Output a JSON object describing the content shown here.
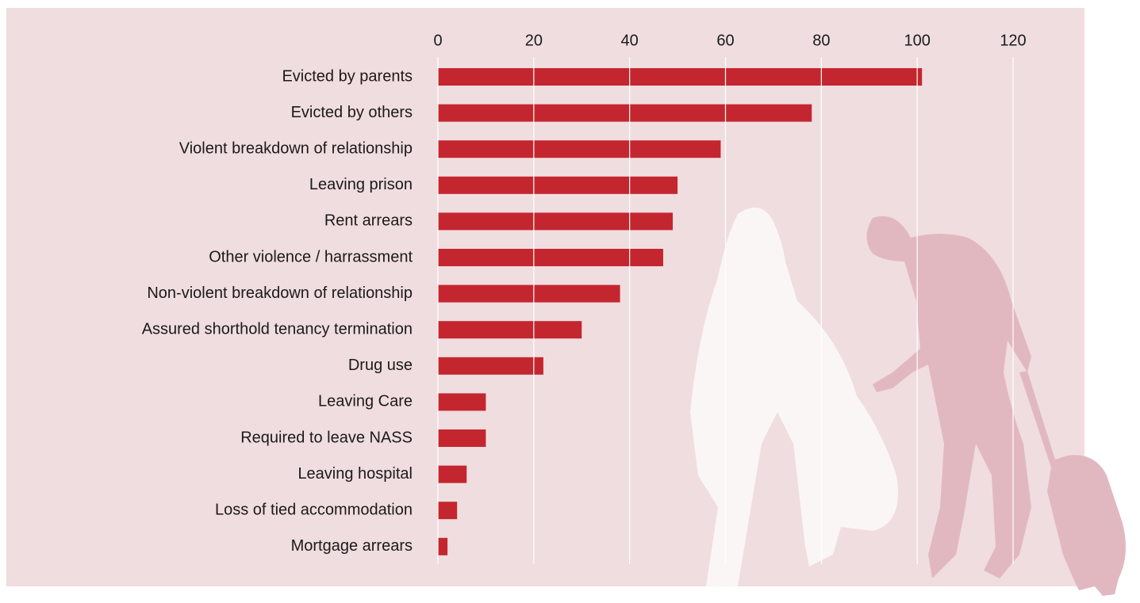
{
  "chart_data": {
    "type": "bar",
    "orientation": "horizontal",
    "categories": [
      "Evicted by parents",
      "Evicted by others",
      "Violent breakdown of relationship",
      "Leaving prison",
      "Rent arrears",
      "Other violence / harrassment",
      "Non-violent breakdown of relationship",
      "Assured shorthold tenancy termination",
      "Drug use",
      "Leaving Care",
      "Required to leave NASS",
      "Leaving hospital",
      "Loss of tied accommodation",
      "Mortgage arrears"
    ],
    "values": [
      101,
      78,
      59,
      50,
      49,
      47,
      38,
      30,
      22,
      10,
      10,
      6,
      4,
      2
    ],
    "color": "#c4262f",
    "xlim": [
      0,
      120
    ],
    "xticks": [
      0,
      20,
      40,
      60,
      80,
      100,
      120
    ],
    "grid": true
  }
}
